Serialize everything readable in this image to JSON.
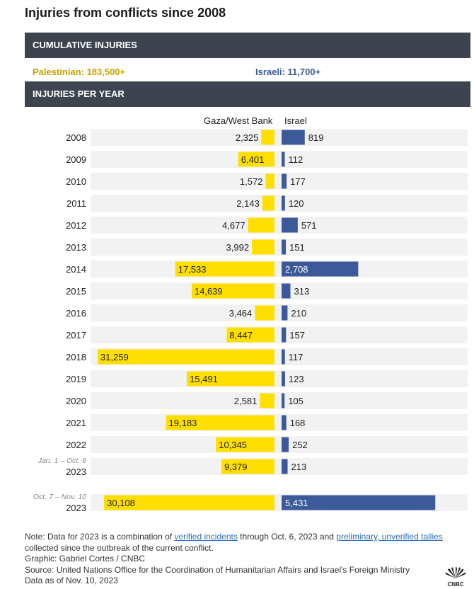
{
  "title": "Injuries from conflicts since 2008",
  "sections": {
    "cumulative": "CUMULATIVE INJURIES",
    "per_year": "INJURIES PER YEAR"
  },
  "cumulative": {
    "palestinian": "Palestinian: 183,500+",
    "israeli": "Israeli: 11,700+"
  },
  "colors": {
    "gaza": "#ffdf00",
    "israel": "#3c5a99",
    "row_bg": "#f2f2f2",
    "band": "#3d4450"
  },
  "chart_data": {
    "type": "bar",
    "title": "Injuries per year",
    "series": [
      {
        "name": "Gaza/West Bank",
        "values": [
          2325,
          6401,
          1572,
          2143,
          4677,
          3992,
          17533,
          14639,
          3464,
          8447,
          31259,
          15491,
          2581,
          19183,
          10345,
          9379,
          30108
        ]
      },
      {
        "name": "Israel",
        "values": [
          819,
          112,
          177,
          120,
          571,
          151,
          2708,
          313,
          210,
          157,
          117,
          123,
          105,
          168,
          252,
          213,
          5431
        ]
      }
    ],
    "rows": [
      {
        "label": "2008",
        "sub": "",
        "gaza": 2325,
        "gaza_label": "2,325",
        "israel": 819,
        "israel_label": "819"
      },
      {
        "label": "2009",
        "sub": "",
        "gaza": 6401,
        "gaza_label": "6,401",
        "israel": 112,
        "israel_label": "112"
      },
      {
        "label": "2010",
        "sub": "",
        "gaza": 1572,
        "gaza_label": "1,572",
        "israel": 177,
        "israel_label": "177"
      },
      {
        "label": "2011",
        "sub": "",
        "gaza": 2143,
        "gaza_label": "2,143",
        "israel": 120,
        "israel_label": "120"
      },
      {
        "label": "2012",
        "sub": "",
        "gaza": 4677,
        "gaza_label": "4,677",
        "israel": 571,
        "israel_label": "571"
      },
      {
        "label": "2013",
        "sub": "",
        "gaza": 3992,
        "gaza_label": "3,992",
        "israel": 151,
        "israel_label": "151"
      },
      {
        "label": "2014",
        "sub": "",
        "gaza": 17533,
        "gaza_label": "17,533",
        "israel": 2708,
        "israel_label": "2,708"
      },
      {
        "label": "2015",
        "sub": "",
        "gaza": 14639,
        "gaza_label": "14,639",
        "israel": 313,
        "israel_label": "313"
      },
      {
        "label": "2016",
        "sub": "",
        "gaza": 3464,
        "gaza_label": "3,464",
        "israel": 210,
        "israel_label": "210"
      },
      {
        "label": "2017",
        "sub": "",
        "gaza": 8447,
        "gaza_label": "8,447",
        "israel": 157,
        "israel_label": "157"
      },
      {
        "label": "2018",
        "sub": "",
        "gaza": 31259,
        "gaza_label": "31,259",
        "israel": 117,
        "israel_label": "117"
      },
      {
        "label": "2019",
        "sub": "",
        "gaza": 15491,
        "gaza_label": "15,491",
        "israel": 123,
        "israel_label": "123"
      },
      {
        "label": "2020",
        "sub": "",
        "gaza": 2581,
        "gaza_label": "2,581",
        "israel": 105,
        "israel_label": "105"
      },
      {
        "label": "2021",
        "sub": "",
        "gaza": 19183,
        "gaza_label": "19,183",
        "israel": 168,
        "israel_label": "168"
      },
      {
        "label": "2022",
        "sub": "",
        "gaza": 10345,
        "gaza_label": "10,345",
        "israel": 252,
        "israel_label": "252"
      },
      {
        "label": "2023",
        "sub": "Jan. 1 – Oct. 6",
        "gaza": 9379,
        "gaza_label": "9,379",
        "israel": 213,
        "israel_label": "213"
      },
      {
        "label": "2023",
        "sub": "Oct. 7 – Nov. 10",
        "gaza": 30108,
        "gaza_label": "30,108",
        "israel": 5431,
        "israel_label": "5,431"
      }
    ],
    "column_labels": {
      "gaza": "Gaza/West Bank",
      "israel": "Israel"
    },
    "xlim": [
      0,
      32000
    ]
  },
  "notes": {
    "note_prefix": "Note: Data for 2023 is a combination of ",
    "link1": "verified incidents",
    "note_mid": " through Oct. 6, 2023 and ",
    "link2": "preliminary, unverified tallies",
    "note_suffix": " collected since the outbreak of the current conflict.",
    "graphic": "Graphic: Gabriel Cortes / CNBC",
    "source": "Source: United Nations Office for the Coordination of Humanitarian Affairs and Israel's Foreign Ministry",
    "date": "Data as of Nov. 10, 2023",
    "logo_text": "CNBC"
  }
}
